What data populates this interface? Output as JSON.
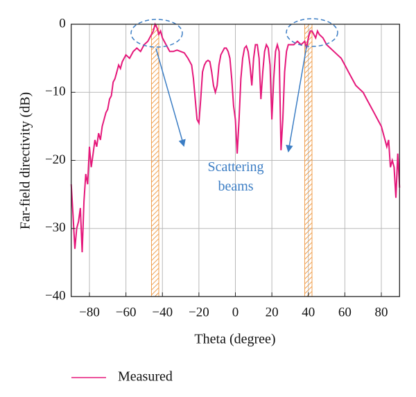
{
  "chart_data": {
    "type": "line",
    "xlabel": "Theta (degree)",
    "ylabel": "Far-field directivity (dB)",
    "annotation": "Scattering\nbeams",
    "xlim": [
      -90,
      90
    ],
    "ylim": [
      -40,
      0
    ],
    "xticks": [
      {
        "value": -80,
        "label": "−80"
      },
      {
        "value": -60,
        "label": "−60"
      },
      {
        "value": -40,
        "label": "−40"
      },
      {
        "value": -20,
        "label": "−20"
      },
      0,
      20,
      40,
      60,
      80
    ],
    "yticks": [
      {
        "value": -40,
        "label": "−40"
      },
      {
        "value": -30,
        "label": "−30"
      },
      {
        "value": -20,
        "label": "−20"
      },
      {
        "value": -10,
        "label": "−10"
      },
      0
    ],
    "grid": true,
    "highlight_ranges": [
      [
        -46,
        -42
      ],
      [
        38,
        42
      ]
    ],
    "series": [
      {
        "name": "Measured",
        "color": "#e5177a",
        "x": [
          -90,
          -89,
          -88,
          -87,
          -86,
          -85,
          -84,
          -83,
          -82,
          -81,
          -80,
          -79,
          -78,
          -77,
          -76,
          -75,
          -74,
          -73,
          -72,
          -71,
          -70,
          -69,
          -68,
          -67,
          -66,
          -65,
          -64,
          -63,
          -62,
          -61,
          -60,
          -58,
          -56,
          -54,
          -52,
          -50,
          -48,
          -46,
          -45,
          -44,
          -43,
          -42,
          -41,
          -40,
          -38,
          -36,
          -34,
          -32,
          -30,
          -28,
          -26,
          -24,
          -23,
          -22,
          -21,
          -20,
          -19,
          -18,
          -17,
          -16,
          -15,
          -14,
          -13,
          -12,
          -11,
          -10,
          -9,
          -8,
          -7,
          -6,
          -5,
          -4,
          -3,
          -2,
          -1,
          0,
          1,
          2,
          3,
          4,
          5,
          6,
          7,
          8,
          9,
          10,
          11,
          12,
          13,
          14,
          15,
          16,
          17,
          18,
          19,
          20,
          21,
          22,
          23,
          24,
          25,
          26,
          27,
          28,
          29,
          30,
          32,
          34,
          36,
          38,
          39,
          40,
          41,
          42,
          43,
          44,
          45,
          46,
          48,
          50,
          52,
          54,
          56,
          58,
          60,
          62,
          64,
          66,
          68,
          70,
          72,
          74,
          76,
          78,
          80,
          82,
          83,
          84,
          85,
          86,
          87,
          88,
          89,
          90
        ],
        "values": [
          -23.5,
          -28,
          -33,
          -30,
          -29,
          -27,
          -33.5,
          -26,
          -22,
          -23.5,
          -18,
          -21,
          -19,
          -17,
          -18,
          -16,
          -17,
          -15,
          -14,
          -13,
          -12.5,
          -11,
          -10.5,
          -8.5,
          -8,
          -7,
          -6,
          -6.5,
          -5.5,
          -5,
          -4.5,
          -5,
          -4,
          -3.5,
          -4,
          -3,
          -2.5,
          -1.5,
          -1,
          0,
          -0.5,
          -1.5,
          -1,
          -2,
          -3,
          -4,
          -4,
          -3.8,
          -4,
          -4.2,
          -5,
          -6,
          -8,
          -11,
          -14,
          -14.5,
          -11,
          -7,
          -6,
          -5.5,
          -5.3,
          -5.5,
          -7,
          -9,
          -10,
          -9,
          -6,
          -4.5,
          -4,
          -3.5,
          -3.5,
          -4,
          -5,
          -8,
          -12,
          -14,
          -19,
          -14,
          -8,
          -5,
          -3.5,
          -3.2,
          -4,
          -6,
          -9,
          -5,
          -3,
          -3,
          -5,
          -11,
          -7,
          -4,
          -3,
          -3.5,
          -6,
          -14,
          -8,
          -4,
          -3,
          -4,
          -18.5,
          -14,
          -7,
          -4,
          -3,
          -3,
          -3,
          -2.5,
          -3,
          -2.5,
          -3.5,
          -2,
          -1,
          -1,
          -1.5,
          -2,
          -1,
          -1.5,
          -2,
          -3,
          -3.5,
          -4,
          -4.5,
          -5,
          -6,
          -7,
          -8,
          -9,
          -9.5,
          -10,
          -11,
          -12,
          -13,
          -14,
          -15,
          -17,
          -18,
          -17,
          -21,
          -20,
          -21,
          -25.5,
          -19,
          -24
        ]
      }
    ]
  }
}
